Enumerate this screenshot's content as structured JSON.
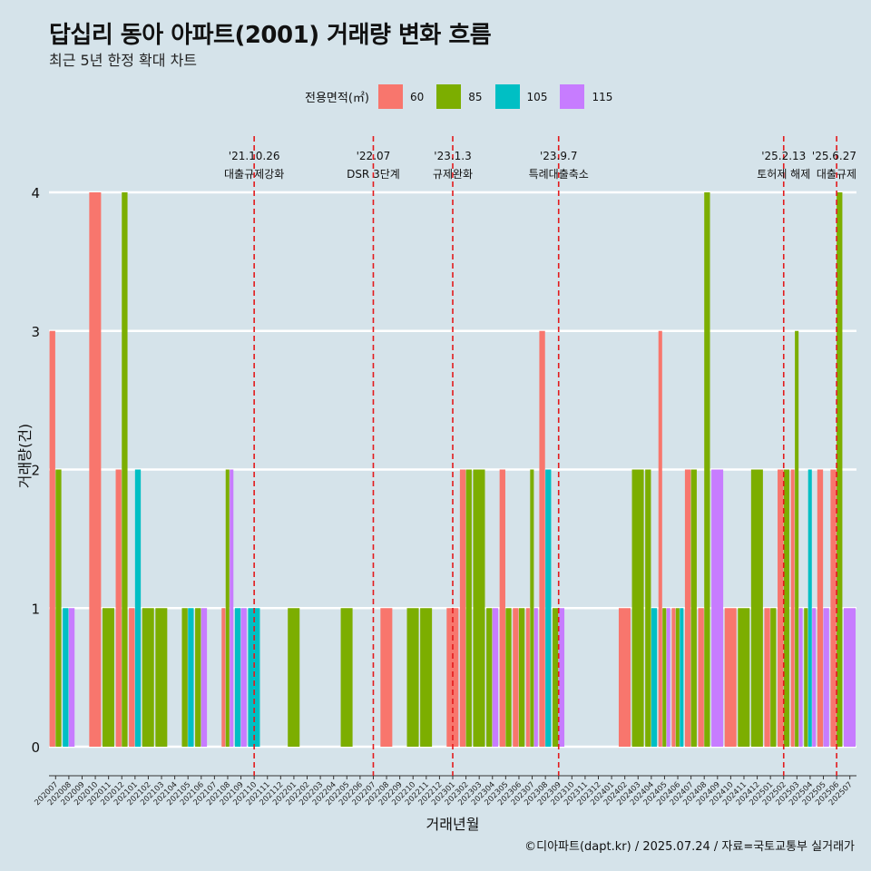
{
  "title": "답십리 동아 아파트(2001) 거래량 변화 흐름",
  "subtitle": "최근 5년 한정 확대 차트",
  "caption": "©디아파트(dapt.kr) / 2025.07.24 / 자료=국토교통부 실거래가",
  "legend": {
    "title": "전용면적(㎡)",
    "items": [
      {
        "label": "60",
        "color": "#F8766D"
      },
      {
        "label": "85",
        "color": "#7CAE00"
      },
      {
        "label": "105",
        "color": "#00BFC4"
      },
      {
        "label": "115",
        "color": "#C77CFF"
      }
    ]
  },
  "chart_data": {
    "type": "bar",
    "xlabel": "거래년월",
    "ylabel": "거래량(건)",
    "ylim": [
      0,
      4
    ],
    "yticks": [
      0,
      1,
      2,
      3,
      4
    ],
    "categories": [
      "202007",
      "202008",
      "202009",
      "202010",
      "202011",
      "202012",
      "202101",
      "202102",
      "202103",
      "202104",
      "202105",
      "202106",
      "202107",
      "202108",
      "202109",
      "202110",
      "202111",
      "202112",
      "202201",
      "202202",
      "202203",
      "202204",
      "202205",
      "202206",
      "202207",
      "202208",
      "202209",
      "202210",
      "202211",
      "202212",
      "202301",
      "202302",
      "202303",
      "202304",
      "202305",
      "202306",
      "202307",
      "202308",
      "202309",
      "202310",
      "202311",
      "202312",
      "202401",
      "202402",
      "202403",
      "202404",
      "202405",
      "202406",
      "202407",
      "202408",
      "202409",
      "202410",
      "202411",
      "202412",
      "202501",
      "202502",
      "202503",
      "202504",
      "202505",
      "202506",
      "202507"
    ],
    "series": [
      {
        "name": "60",
        "color": "#F8766D",
        "values": [
          3,
          0,
          0,
          4,
          0,
          2,
          1,
          0,
          0,
          0,
          0,
          0,
          0,
          1,
          0,
          0,
          0,
          0,
          0,
          0,
          0,
          0,
          0,
          0,
          0,
          1,
          0,
          0,
          0,
          0,
          1,
          2,
          0,
          0,
          2,
          1,
          1,
          3,
          0,
          0,
          0,
          0,
          0,
          1,
          0,
          0,
          3,
          1,
          2,
          1,
          0,
          1,
          0,
          0,
          1,
          2,
          2,
          0,
          2,
          2,
          0
        ]
      },
      {
        "name": "85",
        "color": "#7CAE00",
        "values": [
          2,
          0,
          0,
          0,
          1,
          4,
          0,
          1,
          1,
          0,
          1,
          1,
          0,
          2,
          0,
          0,
          0,
          0,
          1,
          0,
          0,
          0,
          1,
          0,
          0,
          0,
          0,
          1,
          1,
          0,
          0,
          2,
          2,
          1,
          1,
          1,
          2,
          0,
          1,
          0,
          0,
          0,
          0,
          0,
          2,
          2,
          1,
          1,
          2,
          4,
          0,
          0,
          1,
          2,
          1,
          2,
          3,
          1,
          0,
          4,
          0
        ]
      },
      {
        "name": "105",
        "color": "#00BFC4",
        "values": [
          0,
          1,
          0,
          0,
          0,
          0,
          2,
          0,
          0,
          0,
          1,
          0,
          0,
          0,
          1,
          1,
          0,
          0,
          0,
          0,
          0,
          0,
          0,
          0,
          0,
          0,
          0,
          0,
          0,
          0,
          0,
          0,
          0,
          0,
          0,
          0,
          0,
          2,
          0,
          0,
          0,
          0,
          0,
          0,
          0,
          1,
          0,
          1,
          0,
          0,
          0,
          0,
          0,
          0,
          0,
          0,
          0,
          2,
          0,
          0,
          0
        ]
      },
      {
        "name": "115",
        "color": "#C77CFF",
        "values": [
          0,
          1,
          0,
          0,
          0,
          0,
          0,
          0,
          0,
          0,
          0,
          1,
          0,
          2,
          1,
          0,
          0,
          0,
          0,
          0,
          0,
          0,
          0,
          0,
          0,
          0,
          0,
          0,
          0,
          0,
          0,
          0,
          0,
          1,
          0,
          0,
          1,
          0,
          1,
          0,
          0,
          0,
          0,
          0,
          0,
          0,
          1,
          0,
          0,
          0,
          2,
          0,
          0,
          0,
          0,
          0,
          1,
          1,
          1,
          0,
          1
        ]
      }
    ],
    "annotations": [
      {
        "date": "'21.10.26",
        "label": "대출규제강화",
        "x": "202110"
      },
      {
        "date": "'22.07",
        "label": "DSR 3단계",
        "x": "202207"
      },
      {
        "date": "'23.1.3",
        "label": "규제완화",
        "x": "202301"
      },
      {
        "date": "'23.9.7",
        "label": "특례대출축소",
        "x": "202309"
      },
      {
        "date": "'25.2.13",
        "label": "토허제 해제",
        "x": "202502"
      },
      {
        "date": "'25.6.27",
        "label": "대출규제",
        "x": "202506"
      }
    ],
    "grid": true,
    "legend_position": "top"
  }
}
